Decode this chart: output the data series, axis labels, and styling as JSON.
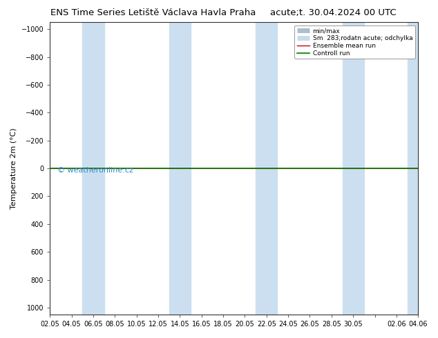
{
  "title_left": "ENS Time Series Letiště Václava Havla Praha",
  "title_right": "acute;t. 30.04.2024 00 UTC",
  "ylabel": "Temperature 2m (°C)",
  "watermark": "© weatheronline.cz",
  "ylim_top": -1050,
  "ylim_bottom": 1050,
  "yticks": [
    -1000,
    -800,
    -600,
    -400,
    -200,
    0,
    200,
    400,
    600,
    800,
    1000
  ],
  "xtick_labels": [
    "02.05",
    "04.05",
    "06.05",
    "08.05",
    "10.05",
    "12.05",
    "14.05",
    "16.05",
    "18.05",
    "20.05",
    "22.05",
    "24.05",
    "26.05",
    "28.05",
    "30.05",
    "",
    "02.06",
    "04.06"
  ],
  "xtick_positions": [
    0,
    2,
    4,
    6,
    8,
    10,
    12,
    14,
    16,
    18,
    20,
    22,
    24,
    26,
    28,
    30,
    32,
    34
  ],
  "x_total": 34,
  "shaded_bands": [
    [
      3,
      5
    ],
    [
      11,
      13
    ],
    [
      19,
      21
    ],
    [
      27,
      29
    ],
    [
      33,
      35
    ]
  ],
  "band_color": "#ccdff0",
  "band_alpha": 1.0,
  "line_y": 0,
  "ensemble_mean_color": "#cc0000",
  "control_run_color": "#007700",
  "legend_entries": [
    {
      "label": "min/max",
      "color": "#aabfcf",
      "lw": 5
    },
    {
      "label": "Sm  283;rodatn acute; odchylka",
      "color": "#c8dce8",
      "lw": 5
    },
    {
      "label": "Ensemble mean run",
      "color": "#cc0000",
      "lw": 1.0
    },
    {
      "label": "Controll run",
      "color": "#007700",
      "lw": 1.2
    }
  ],
  "bg_color": "#ffffff",
  "plot_bg_color": "#ffffff",
  "title_fontsize": 9.5,
  "axis_fontsize": 8,
  "tick_fontsize": 7,
  "watermark_color": "#3388cc",
  "watermark_fontsize": 8
}
